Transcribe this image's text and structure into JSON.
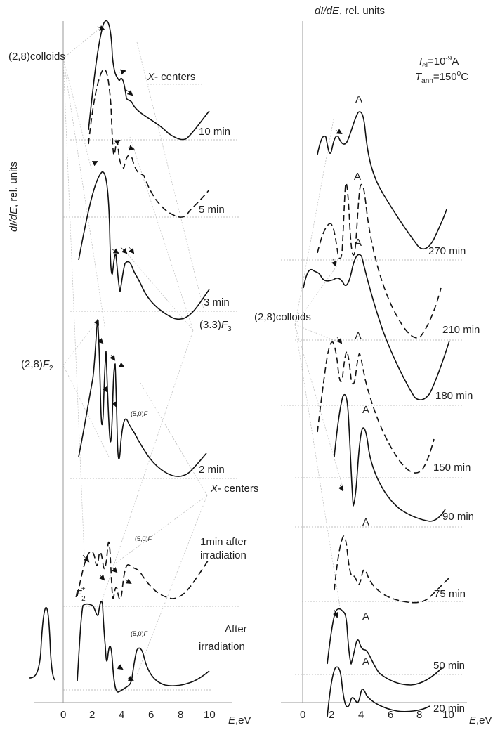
{
  "chart_data": [
    {
      "type": "line",
      "panel": "left",
      "ylabel": "dI/dE, rel. units",
      "xlabel": "E, eV",
      "x_ticks": [
        "0",
        "2",
        "4",
        "6",
        "8",
        "10"
      ],
      "xlim": [
        -0.8,
        10.5
      ],
      "annotations": [
        "(2,8)colloids",
        "X- centers",
        "(3.3)F3",
        "(2,8)F2",
        "X- centers",
        "F2+",
        "(5,0)F"
      ],
      "series": [
        {
          "label": "10 min",
          "style": "solid",
          "peaks_eV": [
            3.1,
            3.9,
            4.6
          ]
        },
        {
          "label": "5 min",
          "style": "dashed",
          "peaks_eV": [
            2.9,
            3.7,
            4.5
          ]
        },
        {
          "label": "3 min",
          "style": "solid",
          "peaks_eV": [
            2.7,
            3.4,
            4.2,
            4.8
          ]
        },
        {
          "label": "2 min",
          "style": "solid",
          "peaks_eV": [
            2.5,
            2.9,
            3.4,
            4.3,
            4.9
          ]
        },
        {
          "label": "1 min after irradiation",
          "style": "dashed",
          "peaks_eV": [
            2.1,
            2.7,
            3.2,
            4.2,
            4.9
          ]
        },
        {
          "label": "After irradiation",
          "style": "solid",
          "peaks_eV": [
            -1.2,
            1.6,
            2.7,
            3.2,
            5.0
          ]
        }
      ]
    },
    {
      "type": "line",
      "panel": "right",
      "ylabel": "dI/dE, rel. units",
      "xlabel": "E, eV",
      "x_ticks": [
        "0",
        "2",
        "4",
        "6",
        "8",
        "10"
      ],
      "xlim": [
        -0.8,
        10.5
      ],
      "conditions": {
        "current": "Iel=10-9A",
        "anneal_temperature": "Tann=1500C"
      },
      "annotations": [
        "(2,8)colloids",
        "A"
      ],
      "series": [
        {
          "label": "270 min",
          "style": "solid",
          "peaks_eV": [
            1.3,
            2.3,
            3.8
          ]
        },
        {
          "label": "210 min",
          "style": "dashed",
          "peaks_eV": [
            2.0,
            2.6,
            3.6
          ]
        },
        {
          "label": "180 min",
          "style": "solid",
          "peaks_eV": [
            1.7,
            3.7
          ]
        },
        {
          "label": "150 min",
          "style": "dashed",
          "peaks_eV": [
            2.1,
            2.8,
            3.7
          ]
        },
        {
          "label": "90 min",
          "style": "solid",
          "peaks_eV": [
            2.9,
            4.3
          ]
        },
        {
          "label": "75 min",
          "style": "dashed",
          "peaks_eV": [
            2.9,
            4.2
          ]
        },
        {
          "label": "50 min",
          "style": "solid",
          "peaks_eV": [
            2.9,
            4.1,
            5.0
          ]
        },
        {
          "label": "20 min",
          "style": "solid",
          "peaks_eV": [
            2.8,
            3.7,
            4.1
          ]
        }
      ]
    }
  ],
  "text": {
    "right_top_ylabel": "dI/dE, rel. units",
    "left_ylabel": "dI/dE, rel. units",
    "e_axis_left": "E,eV",
    "e_axis_right": "E,eV",
    "colloids_left": "(2,8)colloids",
    "colloids_right": "(2,8)colloids",
    "xcenters_top": "X- centers",
    "xcenters_mid": "X- centers",
    "f3": "(3.3)F3",
    "f2": "(2,8)F2",
    "f2plus": "F2+",
    "f50": "(5,0)F",
    "iel": "Iel=10-9A",
    "tann": "Tann=1500C",
    "peak_a": "A",
    "after1": "1min after",
    "after2": "irradiation",
    "after_irr1": "After",
    "after_irr2": "irradiation",
    "t10": "10 min",
    "t5": "5 min",
    "t3": "3 min",
    "t2": "2 min",
    "t270": "270 min",
    "t210": "210 min",
    "t180": "180 min",
    "t150": "150 min",
    "t90": "90 min",
    "t75": "75 min",
    "t50": "50 min",
    "t20": "20 min"
  }
}
